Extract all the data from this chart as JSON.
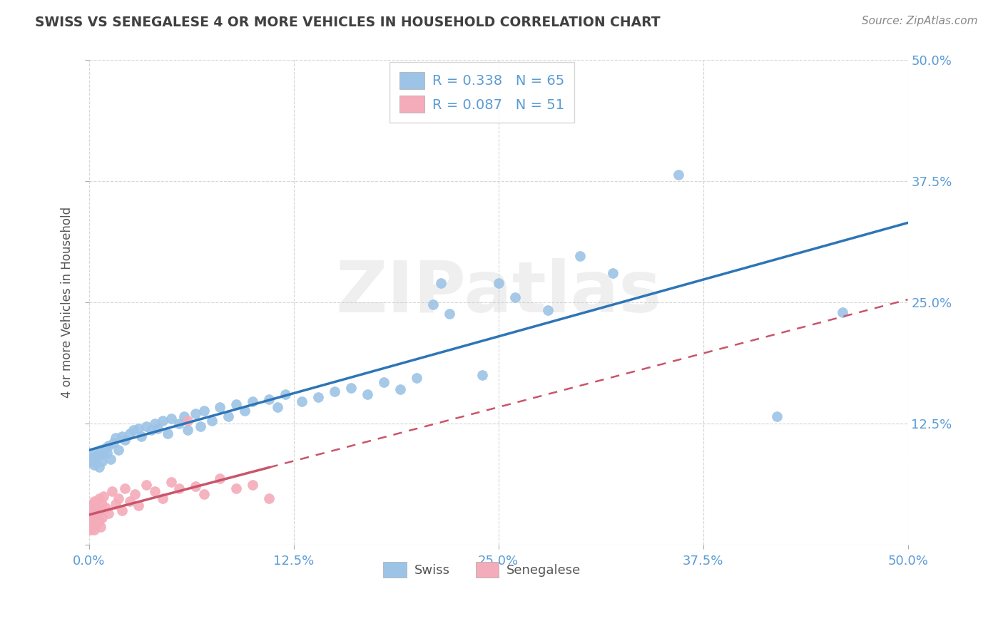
{
  "title": "SWISS VS SENEGALESE 4 OR MORE VEHICLES IN HOUSEHOLD CORRELATION CHART",
  "source": "Source: ZipAtlas.com",
  "ylabel": "4 or more Vehicles in Household",
  "xlim": [
    0.0,
    0.5
  ],
  "ylim": [
    0.0,
    0.5
  ],
  "xtick_vals": [
    0.0,
    0.125,
    0.25,
    0.375,
    0.5
  ],
  "xtick_labels": [
    "0.0%",
    "12.5%",
    "25.0%",
    "37.5%",
    "50.0%"
  ],
  "ytick_vals": [
    0.0,
    0.125,
    0.25,
    0.375,
    0.5
  ],
  "ytick_labels_right": [
    "",
    "12.5%",
    "25.0%",
    "37.5%",
    "50.0%"
  ],
  "legend_swiss_R": "R = 0.338",
  "legend_swiss_N": "N = 65",
  "legend_senegalese_R": "R = 0.087",
  "legend_senegalese_N": "N = 51",
  "swiss_color": "#9DC3E6",
  "senegalese_color": "#F4ABBA",
  "swiss_line_color": "#2E75B6",
  "senegalese_line_color": "#C9556A",
  "watermark": "ZIPatlas",
  "title_color": "#404040",
  "axis_color": "#5B9BD5",
  "swiss_scatter": [
    [
      0.001,
      0.085
    ],
    [
      0.002,
      0.09
    ],
    [
      0.003,
      0.082
    ],
    [
      0.003,
      0.095
    ],
    [
      0.004,
      0.088
    ],
    [
      0.005,
      0.092
    ],
    [
      0.006,
      0.08
    ],
    [
      0.007,
      0.098
    ],
    [
      0.008,
      0.086
    ],
    [
      0.009,
      0.093
    ],
    [
      0.01,
      0.1
    ],
    [
      0.011,
      0.095
    ],
    [
      0.012,
      0.102
    ],
    [
      0.013,
      0.088
    ],
    [
      0.015,
      0.105
    ],
    [
      0.016,
      0.11
    ],
    [
      0.018,
      0.098
    ],
    [
      0.02,
      0.112
    ],
    [
      0.022,
      0.108
    ],
    [
      0.025,
      0.115
    ],
    [
      0.027,
      0.118
    ],
    [
      0.03,
      0.12
    ],
    [
      0.032,
      0.112
    ],
    [
      0.035,
      0.122
    ],
    [
      0.038,
      0.118
    ],
    [
      0.04,
      0.125
    ],
    [
      0.042,
      0.12
    ],
    [
      0.045,
      0.128
    ],
    [
      0.048,
      0.115
    ],
    [
      0.05,
      0.13
    ],
    [
      0.055,
      0.125
    ],
    [
      0.058,
      0.132
    ],
    [
      0.06,
      0.118
    ],
    [
      0.065,
      0.135
    ],
    [
      0.068,
      0.122
    ],
    [
      0.07,
      0.138
    ],
    [
      0.075,
      0.128
    ],
    [
      0.08,
      0.142
    ],
    [
      0.085,
      0.132
    ],
    [
      0.09,
      0.145
    ],
    [
      0.095,
      0.138
    ],
    [
      0.1,
      0.148
    ],
    [
      0.11,
      0.15
    ],
    [
      0.115,
      0.142
    ],
    [
      0.12,
      0.155
    ],
    [
      0.13,
      0.148
    ],
    [
      0.14,
      0.152
    ],
    [
      0.15,
      0.158
    ],
    [
      0.16,
      0.162
    ],
    [
      0.17,
      0.155
    ],
    [
      0.18,
      0.168
    ],
    [
      0.19,
      0.16
    ],
    [
      0.2,
      0.172
    ],
    [
      0.21,
      0.248
    ],
    [
      0.215,
      0.27
    ],
    [
      0.22,
      0.238
    ],
    [
      0.24,
      0.175
    ],
    [
      0.25,
      0.27
    ],
    [
      0.26,
      0.255
    ],
    [
      0.28,
      0.242
    ],
    [
      0.3,
      0.298
    ],
    [
      0.32,
      0.28
    ],
    [
      0.36,
      0.382
    ],
    [
      0.42,
      0.132
    ],
    [
      0.46,
      0.24
    ]
  ],
  "senegalese_scatter": [
    [
      0.0,
      0.022
    ],
    [
      0.0,
      0.03
    ],
    [
      0.0,
      0.018
    ],
    [
      0.0,
      0.025
    ],
    [
      0.001,
      0.028
    ],
    [
      0.001,
      0.02
    ],
    [
      0.001,
      0.032
    ],
    [
      0.001,
      0.015
    ],
    [
      0.001,
      0.035
    ],
    [
      0.002,
      0.022
    ],
    [
      0.002,
      0.038
    ],
    [
      0.002,
      0.018
    ],
    [
      0.002,
      0.042
    ],
    [
      0.003,
      0.025
    ],
    [
      0.003,
      0.015
    ],
    [
      0.003,
      0.032
    ],
    [
      0.003,
      0.045
    ],
    [
      0.004,
      0.028
    ],
    [
      0.004,
      0.02
    ],
    [
      0.004,
      0.038
    ],
    [
      0.005,
      0.032
    ],
    [
      0.005,
      0.022
    ],
    [
      0.006,
      0.048
    ],
    [
      0.006,
      0.025
    ],
    [
      0.007,
      0.035
    ],
    [
      0.007,
      0.018
    ],
    [
      0.008,
      0.042
    ],
    [
      0.008,
      0.028
    ],
    [
      0.009,
      0.05
    ],
    [
      0.01,
      0.038
    ],
    [
      0.012,
      0.032
    ],
    [
      0.014,
      0.055
    ],
    [
      0.016,
      0.042
    ],
    [
      0.018,
      0.048
    ],
    [
      0.02,
      0.035
    ],
    [
      0.022,
      0.058
    ],
    [
      0.025,
      0.045
    ],
    [
      0.028,
      0.052
    ],
    [
      0.03,
      0.04
    ],
    [
      0.035,
      0.062
    ],
    [
      0.04,
      0.055
    ],
    [
      0.045,
      0.048
    ],
    [
      0.05,
      0.065
    ],
    [
      0.055,
      0.058
    ],
    [
      0.06,
      0.128
    ],
    [
      0.065,
      0.06
    ],
    [
      0.07,
      0.052
    ],
    [
      0.08,
      0.068
    ],
    [
      0.09,
      0.058
    ],
    [
      0.1,
      0.062
    ],
    [
      0.11,
      0.048
    ]
  ]
}
